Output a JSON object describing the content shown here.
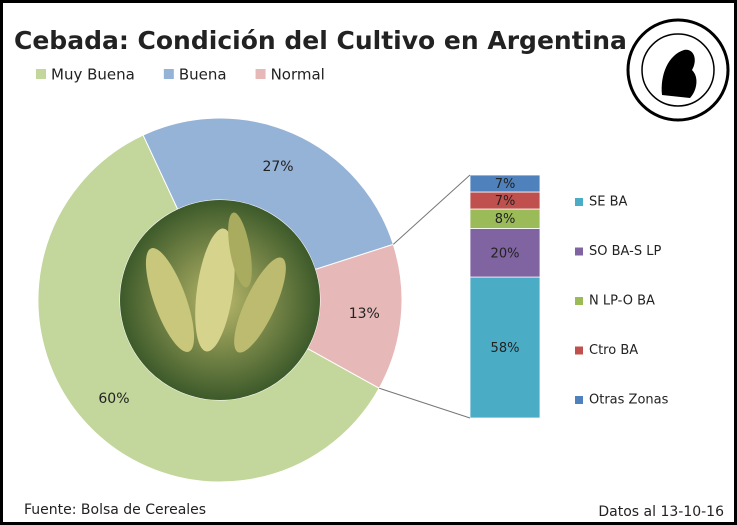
{
  "chart_data": [
    {
      "type": "pie",
      "title": "Cebada: Condición del Cultivo en Argentina",
      "categories": [
        "Muy Buena",
        "Buena",
        "Normal"
      ],
      "values": [
        60,
        27,
        13
      ],
      "value_labels": [
        "60%",
        "27%",
        "13%"
      ],
      "colors": [
        "#c3d69b",
        "#95b3d7",
        "#e6b9b8"
      ],
      "source": "Fuente: Bolsa de Cereales",
      "note": "Datos al 13-10-16"
    },
    {
      "type": "stacked-bar",
      "categories": [
        null
      ],
      "series": [
        {
          "name": "SE BA",
          "color": "#4bacc6",
          "values": [
            58
          ],
          "value_labels": [
            "58%"
          ]
        },
        {
          "name": "SO BA-S LP",
          "color": "#8064a2",
          "values": [
            20
          ],
          "value_labels": [
            "20%"
          ]
        },
        {
          "name": "N LP-O BA",
          "color": "#9bbb59",
          "values": [
            8
          ],
          "value_labels": [
            "8%"
          ]
        },
        {
          "name": "Ctro BA",
          "color": "#c0504d",
          "values": [
            7
          ],
          "value_labels": [
            "7%"
          ]
        },
        {
          "name": "Otras Zonas",
          "color": "#4f81bd",
          "values": [
            7
          ],
          "value_labels": [
            "7%"
          ]
        }
      ]
    }
  ]
}
